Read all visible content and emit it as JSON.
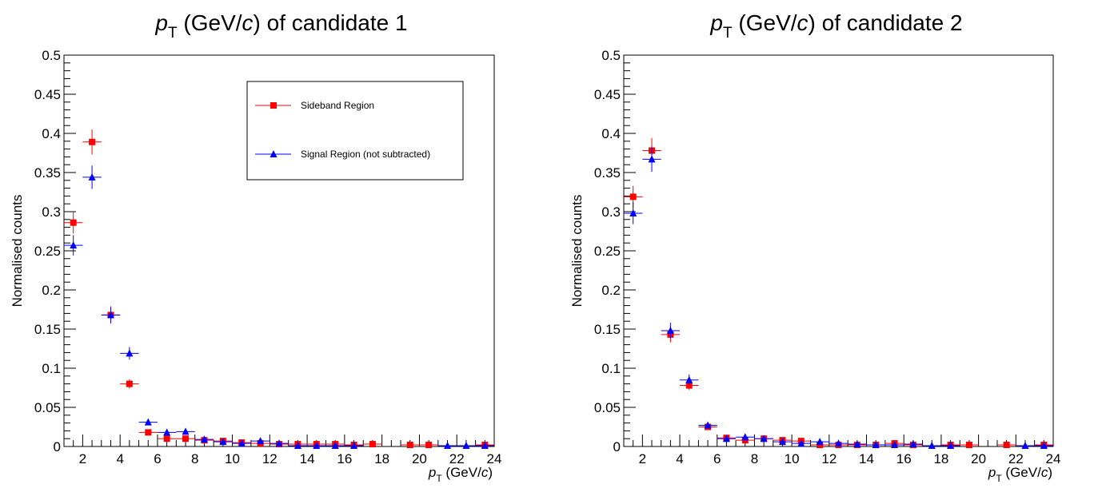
{
  "colors": {
    "sideband": "#ff0000",
    "signal": "#0000ff",
    "axis": "#000000",
    "background": "#ffffff"
  },
  "chart_data": [
    {
      "type": "scatter",
      "title_sym": "p",
      "title_sub": "T",
      "title_rest_1": " (GeV/",
      "title_c": "c",
      "title_rest_2": ") of candidate 1",
      "ylabel": "Normalised counts",
      "xlabel_sym": "p",
      "xlabel_sub": "T",
      "xlabel_rest_1": " (GeV/",
      "xlabel_c": "c",
      "xlabel_rest_2": ")",
      "xlim": [
        1,
        24
      ],
      "ylim": [
        0,
        0.5
      ],
      "xticks": [
        "2",
        "4",
        "6",
        "8",
        "10",
        "12",
        "14",
        "16",
        "18",
        "20",
        "22",
        "24"
      ],
      "yticks": [
        "0",
        "0.05",
        "0.1",
        "0.15",
        "0.2",
        "0.25",
        "0.3",
        "0.35",
        "0.4",
        "0.45",
        "0.5"
      ],
      "grid": false,
      "legend_position": "top-right",
      "series": [
        {
          "name": "Sideband Region",
          "marker": "square",
          "color": "#ff0000",
          "x": [
            1.5,
            2.5,
            3.5,
            4.5,
            5.5,
            6.5,
            7.5,
            8.5,
            9.5,
            10.5,
            11.5,
            12.5,
            13.5,
            14.5,
            15.5,
            16.5,
            17.5,
            19.5,
            20.5,
            23.5
          ],
          "y": [
            0.286,
            0.389,
            0.168,
            0.08,
            0.018,
            0.01,
            0.01,
            0.008,
            0.007,
            0.005,
            0.004,
            0.003,
            0.003,
            0.003,
            0.003,
            0.002,
            0.003,
            0.002,
            0.002,
            0.002
          ],
          "yerr": [
            0.014,
            0.016,
            0.011,
            0.006,
            0.003,
            0.002,
            0.002,
            0.002,
            0.002,
            0.002,
            0.001,
            0.001,
            0.001,
            0.001,
            0.001,
            0.001,
            0.001,
            0.001,
            0.001,
            0.001
          ]
        },
        {
          "name": "Signal Region (not subtracted)",
          "marker": "triangle",
          "color": "#0000ff",
          "x": [
            1.5,
            2.5,
            3.5,
            4.5,
            5.5,
            6.5,
            7.5,
            8.5,
            9.5,
            10.5,
            11.5,
            12.5,
            13.5,
            14.5,
            15.5,
            16.5,
            21.5,
            22.5,
            23.5
          ],
          "y": [
            0.257,
            0.344,
            0.168,
            0.119,
            0.031,
            0.018,
            0.019,
            0.009,
            0.006,
            0.004,
            0.007,
            0.004,
            0.001,
            0.001,
            0.001,
            0.001,
            0.001,
            0.001,
            0.001
          ],
          "yerr": [
            0.013,
            0.015,
            0.01,
            0.008,
            0.004,
            0.003,
            0.003,
            0.002,
            0.002,
            0.002,
            0.002,
            0.001,
            0.001,
            0.001,
            0.001,
            0.001,
            0.001,
            0.001,
            0.001
          ]
        }
      ]
    },
    {
      "type": "scatter",
      "title_sym": "p",
      "title_sub": "T",
      "title_rest_1": " (GeV/",
      "title_c": "c",
      "title_rest_2": ") of candidate 2",
      "ylabel": "Normalised counts",
      "xlabel_sym": "p",
      "xlabel_sub": "T",
      "xlabel_rest_1": " (GeV/",
      "xlabel_c": "c",
      "xlabel_rest_2": ")",
      "xlim": [
        1,
        24
      ],
      "ylim": [
        0,
        0.5
      ],
      "xticks": [
        "2",
        "4",
        "6",
        "8",
        "10",
        "12",
        "14",
        "16",
        "18",
        "20",
        "22",
        "24"
      ],
      "yticks": [
        "0",
        "0.05",
        "0.1",
        "0.15",
        "0.2",
        "0.25",
        "0.3",
        "0.35",
        "0.4",
        "0.45",
        "0.5"
      ],
      "grid": false,
      "series": [
        {
          "marker": "square",
          "color": "#ff0000",
          "x": [
            1.5,
            2.5,
            3.5,
            4.5,
            5.5,
            6.5,
            7.5,
            8.5,
            9.5,
            10.5,
            11.5,
            12.5,
            13.5,
            14.5,
            15.5,
            16.5,
            18.5,
            19.5,
            21.5,
            23.5
          ],
          "y": [
            0.319,
            0.378,
            0.143,
            0.078,
            0.025,
            0.011,
            0.008,
            0.01,
            0.008,
            0.007,
            0.002,
            0.002,
            0.002,
            0.002,
            0.004,
            0.002,
            0.002,
            0.002,
            0.002,
            0.002
          ],
          "yerr": [
            0.014,
            0.016,
            0.01,
            0.006,
            0.003,
            0.002,
            0.002,
            0.002,
            0.002,
            0.002,
            0.001,
            0.001,
            0.001,
            0.001,
            0.001,
            0.001,
            0.001,
            0.001,
            0.001,
            0.001
          ]
        },
        {
          "marker": "triangle",
          "color": "#0000ff",
          "x": [
            1.5,
            2.5,
            3.5,
            4.5,
            5.5,
            6.5,
            7.5,
            8.5,
            9.5,
            10.5,
            11.5,
            12.5,
            13.5,
            14.5,
            15.5,
            16.5,
            17.5,
            18.5,
            22.5,
            23.5
          ],
          "y": [
            0.298,
            0.367,
            0.148,
            0.085,
            0.027,
            0.01,
            0.012,
            0.01,
            0.006,
            0.004,
            0.006,
            0.004,
            0.003,
            0.002,
            0.002,
            0.003,
            0.001,
            0.001,
            0.001,
            0.001
          ],
          "yerr": [
            0.014,
            0.016,
            0.01,
            0.007,
            0.003,
            0.002,
            0.002,
            0.002,
            0.002,
            0.002,
            0.001,
            0.001,
            0.001,
            0.001,
            0.001,
            0.001,
            0.001,
            0.001,
            0.001,
            0.001
          ]
        }
      ]
    }
  ]
}
